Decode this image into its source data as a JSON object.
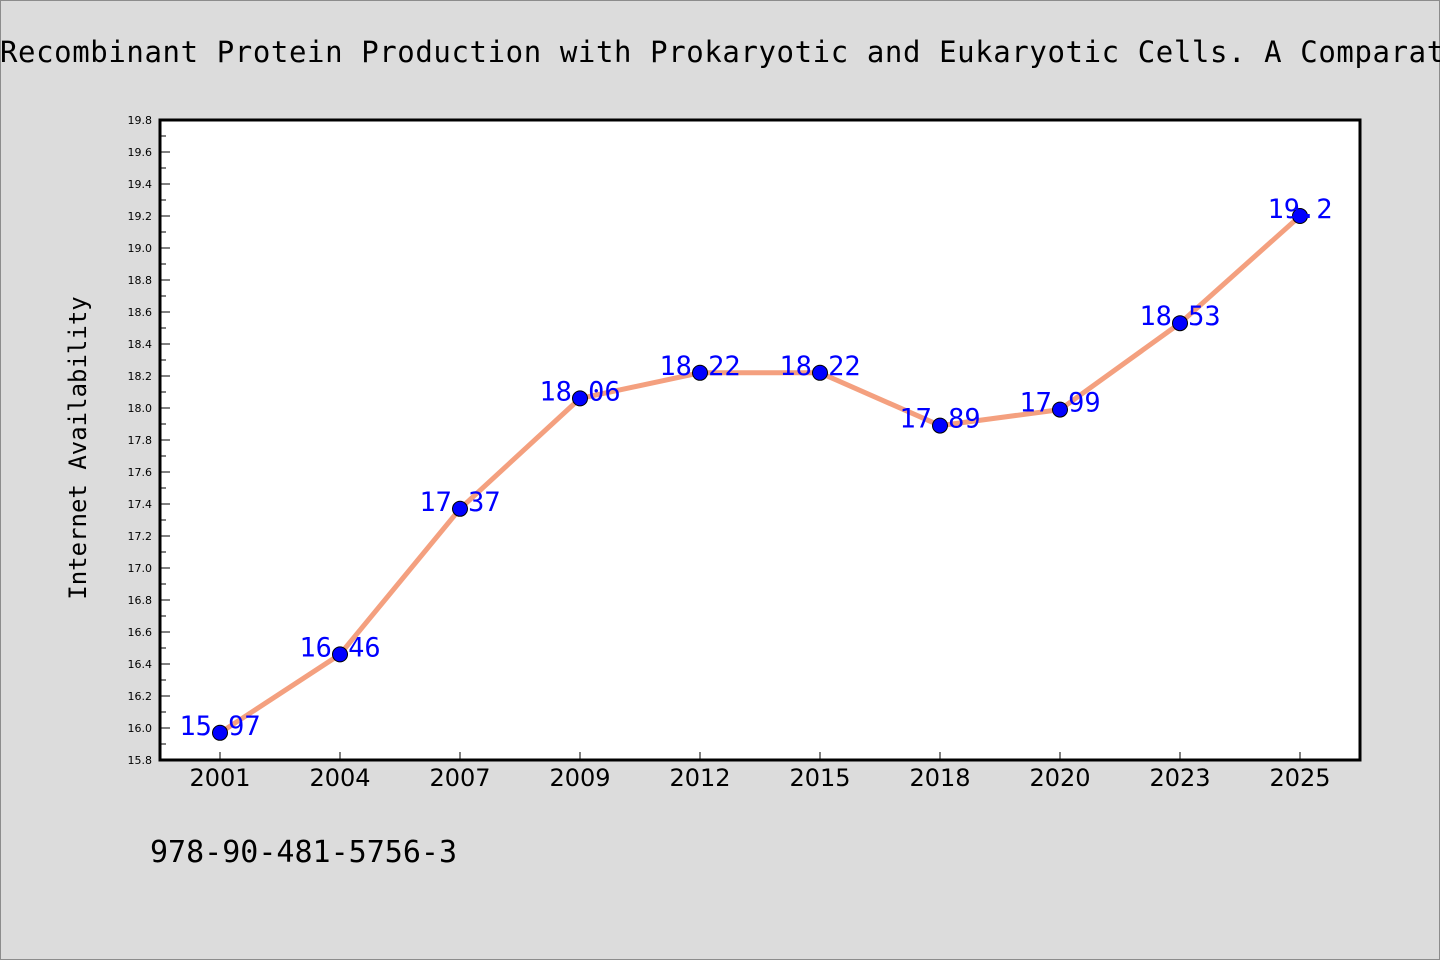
{
  "title": "Recombinant Protein Production with Prokaryotic and Eukaryotic Cells. A Comparat",
  "isbn": "978-90-481-5756-3",
  "chart_data": {
    "type": "line",
    "title": "Recombinant Protein Production with Prokaryotic and Eukaryotic Cells. A Comparat",
    "xlabel": "",
    "ylabel": "Internet Availability",
    "categories": [
      "2001",
      "2004",
      "2007",
      "2009",
      "2012",
      "2015",
      "2018",
      "2020",
      "2023",
      "2025"
    ],
    "values": [
      15.97,
      16.46,
      17.37,
      18.06,
      18.22,
      18.22,
      17.89,
      17.99,
      18.53,
      19.2
    ],
    "data_labels": [
      "15.97",
      "16.46",
      "17.37",
      "18.06",
      "18.22",
      "18.22",
      "17.89",
      "17.99",
      "18.53",
      "19.2"
    ],
    "ylim": [
      15.8,
      19.8
    ],
    "yticks": [
      "15.8",
      "16.0",
      "16.2",
      "16.4",
      "16.6",
      "16.8",
      "17.0",
      "17.2",
      "17.4",
      "17.6",
      "17.8",
      "18.0",
      "18.2",
      "18.4",
      "18.6",
      "18.8",
      "19.0",
      "19.2",
      "19.4",
      "19.6",
      "19.8"
    ],
    "grid": false,
    "legend": "none",
    "colors": {
      "line": "#f4a07f",
      "marker": "#0000ff",
      "label": "#0000ff",
      "plot_background": "#ffffff",
      "page_background": "#dcdcdc"
    }
  }
}
